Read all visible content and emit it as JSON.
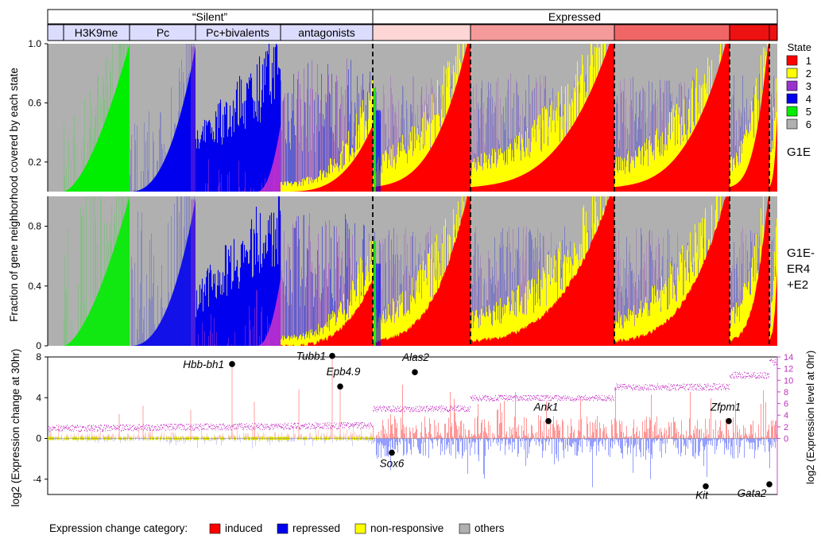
{
  "top_labels": {
    "silent": "“Silent”",
    "expressed": "Expressed",
    "silent_groups": [
      "H3K9me",
      "Pc",
      "Pc+bivalents",
      "antagonists"
    ]
  },
  "legend_state": {
    "title": "State",
    "items": [
      {
        "label": "1",
        "color": "#ff0000"
      },
      {
        "label": "2",
        "color": "#ffff00"
      },
      {
        "label": "3",
        "color": "#9933cc"
      },
      {
        "label": "4",
        "color": "#0000ee"
      },
      {
        "label": "5",
        "color": "#00ee00"
      },
      {
        "label": "6",
        "color": "#b0b0b0"
      }
    ]
  },
  "panel_labels": {
    "g1e": "G1E",
    "er4_line1": "G1E-",
    "er4_line2": "ER4",
    "er4_line3": "+E2"
  },
  "y_axis_label_top": "Fraction of gene neighborhood covered by each state",
  "y_axis_label_bottom_left": "log2 (Expression change at 30hr)",
  "y_axis_label_bottom_right": "log2 (Expression level at 0hr)",
  "expression_legend": {
    "title": "Expression change category:",
    "items": [
      {
        "label": "induced",
        "color": "#ff0000"
      },
      {
        "label": "repressed",
        "color": "#0000ee"
      },
      {
        "label": "non-responsive",
        "color": "#ffff00"
      },
      {
        "label": "others",
        "color": "#b0b0b0"
      }
    ]
  },
  "chart_data": [
    {
      "type": "area",
      "panel": "G1E",
      "ylim": [
        0,
        1
      ],
      "yticks": [
        "1.0",
        "0.6",
        "0.2"
      ],
      "yticks_values": [
        1.0,
        0.6,
        0.2
      ],
      "states": [
        "1",
        "2",
        "3",
        "4",
        "5",
        "6"
      ]
    },
    {
      "type": "area",
      "panel": "G1E-ER4+E2",
      "ylim": [
        0,
        1
      ],
      "yticks": [
        "0.8",
        "0.4",
        "0"
      ],
      "yticks_values": [
        0.8,
        0.4,
        0
      ],
      "states": [
        "1",
        "2",
        "3",
        "4",
        "5",
        "6"
      ]
    },
    {
      "type": "scatter",
      "panel": "expression",
      "ylim_left": [
        -5.5,
        8
      ],
      "yticks_left": [
        "8",
        "4",
        "0",
        "-4"
      ],
      "yticks_left_values": [
        8,
        4,
        0,
        -4
      ],
      "ylim_right": [
        0,
        14
      ],
      "yticks_right": [
        "14",
        "12",
        "10",
        "8",
        "6",
        "4",
        "2",
        "0"
      ],
      "yticks_right_values": [
        14,
        12,
        10,
        8,
        6,
        4,
        2,
        0
      ],
      "labeled_genes": [
        {
          "name": "Hbb-bh1",
          "y": 7.3
        },
        {
          "name": "Tubb1",
          "y": 8.1
        },
        {
          "name": "Epb4.9",
          "y": 5.1
        },
        {
          "name": "Alas2",
          "y": 6.5
        },
        {
          "name": "Sox6",
          "y": -1.4
        },
        {
          "name": "Ank1",
          "y": 1.7
        },
        {
          "name": "Zfpm1",
          "y": 1.7
        },
        {
          "name": "Kit",
          "y": -4.7
        },
        {
          "name": "Gata2",
          "y": -4.5
        }
      ]
    }
  ]
}
